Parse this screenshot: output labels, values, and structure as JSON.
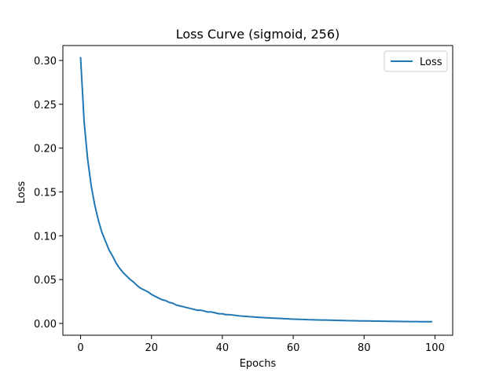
{
  "chart_data": {
    "type": "line",
    "title": "Loss Curve (sigmoid, 256)",
    "xlabel": "Epochs",
    "ylabel": "Loss",
    "xlim": [
      -5,
      105
    ],
    "ylim": [
      -0.0135,
      0.317
    ],
    "xticks": [
      0,
      20,
      40,
      60,
      80,
      100
    ],
    "xtick_labels": [
      "0",
      "20",
      "40",
      "60",
      "80",
      "100"
    ],
    "yticks": [
      0.0,
      0.05,
      0.1,
      0.15,
      0.2,
      0.25,
      0.3
    ],
    "ytick_labels": [
      "0.00",
      "0.05",
      "0.10",
      "0.15",
      "0.20",
      "0.25",
      "0.30"
    ],
    "grid": false,
    "legend": {
      "position": "top-right",
      "entries": [
        "Loss"
      ]
    },
    "series": [
      {
        "name": "Loss",
        "color": "#1f77b4",
        "x": [
          0,
          1,
          2,
          3,
          4,
          5,
          6,
          7,
          8,
          9,
          10,
          11,
          12,
          13,
          14,
          15,
          16,
          17,
          18,
          19,
          20,
          21,
          22,
          23,
          24,
          25,
          26,
          27,
          28,
          29,
          30,
          31,
          32,
          33,
          34,
          35,
          36,
          37,
          38,
          39,
          40,
          41,
          42,
          43,
          44,
          45,
          46,
          47,
          48,
          49,
          50,
          51,
          52,
          53,
          54,
          55,
          56,
          57,
          58,
          59,
          60,
          61,
          62,
          63,
          64,
          65,
          66,
          67,
          68,
          69,
          70,
          71,
          72,
          73,
          74,
          75,
          76,
          77,
          78,
          79,
          80,
          81,
          82,
          83,
          84,
          85,
          86,
          87,
          88,
          89,
          90,
          91,
          92,
          93,
          94,
          95,
          96,
          97,
          98,
          99
        ],
        "values": [
          0.303,
          0.23,
          0.187,
          0.157,
          0.135,
          0.118,
          0.104,
          0.094,
          0.084,
          0.077,
          0.069,
          0.063,
          0.058,
          0.054,
          0.05,
          0.047,
          0.043,
          0.04,
          0.038,
          0.036,
          0.033,
          0.031,
          0.029,
          0.027,
          0.026,
          0.024,
          0.023,
          0.021,
          0.02,
          0.019,
          0.018,
          0.017,
          0.016,
          0.015,
          0.015,
          0.014,
          0.013,
          0.013,
          0.012,
          0.011,
          0.011,
          0.01,
          0.01,
          0.0095,
          0.009,
          0.0085,
          0.0082,
          0.0079,
          0.0076,
          0.0073,
          0.007,
          0.0068,
          0.0065,
          0.0063,
          0.0061,
          0.0059,
          0.0057,
          0.0055,
          0.0053,
          0.0051,
          0.0049,
          0.0048,
          0.0046,
          0.0045,
          0.0043,
          0.0042,
          0.0041,
          0.004,
          0.0039,
          0.0038,
          0.0037,
          0.0036,
          0.0035,
          0.0034,
          0.0033,
          0.0032,
          0.0031,
          0.0031,
          0.003,
          0.0029,
          0.0028,
          0.0028,
          0.0027,
          0.0026,
          0.0026,
          0.0025,
          0.0025,
          0.0024,
          0.0024,
          0.0023,
          0.0023,
          0.0022,
          0.0022,
          0.0021,
          0.0021,
          0.0021,
          0.002,
          0.002,
          0.0019,
          0.0019
        ]
      }
    ]
  }
}
